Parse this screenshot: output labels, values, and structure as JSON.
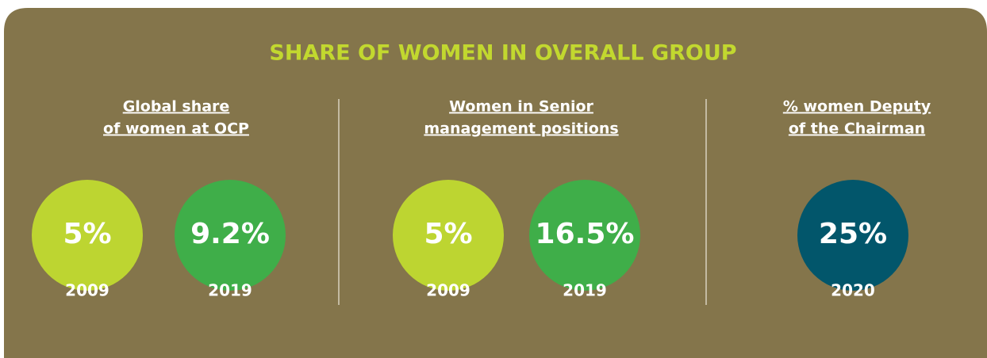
{
  "title": "SHARE OF WOMEN IN OVERALL GROUP",
  "panels": [
    {
      "heading": [
        "Global share",
        "of women at OCP"
      ],
      "items": [
        {
          "value": "5%",
          "year": "2009",
          "color": "#bdd531"
        },
        {
          "value": "9.2%",
          "year": "2019",
          "color": "#3fae49"
        }
      ]
    },
    {
      "heading": [
        "Women in Senior",
        "management positions"
      ],
      "items": [
        {
          "value": "5%",
          "year": "2009",
          "color": "#bdd531"
        },
        {
          "value": "16.5%",
          "year": "2019",
          "color": "#3fae49"
        }
      ]
    },
    {
      "heading": [
        "% women Deputy",
        "of the Chairman"
      ],
      "items": [
        {
          "value": "25%",
          "year": "2020",
          "color": "#02566b"
        }
      ]
    }
  ]
}
